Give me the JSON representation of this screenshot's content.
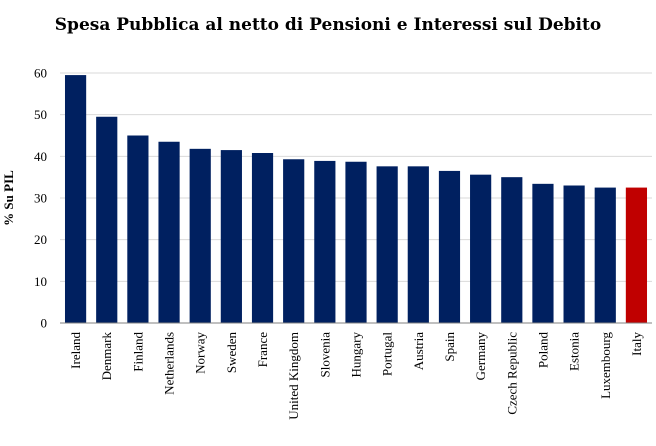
{
  "chart_data": {
    "type": "bar",
    "title": "Spesa Pubblica al netto di Pensioni e Interessi sul Debito",
    "xlabel": "",
    "ylabel": "% Su PIL",
    "ylim": [
      0,
      60
    ],
    "yticks": [
      0,
      10,
      20,
      30,
      40,
      50,
      60
    ],
    "grid": true,
    "legend": "none",
    "categories": [
      "Ireland",
      "Denmark",
      "Finland",
      "Netherlands",
      "Norway",
      "Sweden",
      "France",
      "United Kingdom",
      "Slovenia",
      "Hungary",
      "Portugal",
      "Austria",
      "Spain",
      "Germany",
      "Czech Republic",
      "Poland",
      "Estonia",
      "Luxembourg",
      "Italy"
    ],
    "values": [
      59.5,
      49.5,
      45.0,
      43.5,
      41.8,
      41.5,
      40.8,
      39.3,
      38.9,
      38.7,
      37.6,
      37.6,
      36.5,
      35.6,
      35.0,
      33.4,
      33.0,
      32.5,
      32.5
    ],
    "colors": {
      "default": "#002060",
      "highlight": "#c00000",
      "highlight_category": "Italy"
    }
  }
}
